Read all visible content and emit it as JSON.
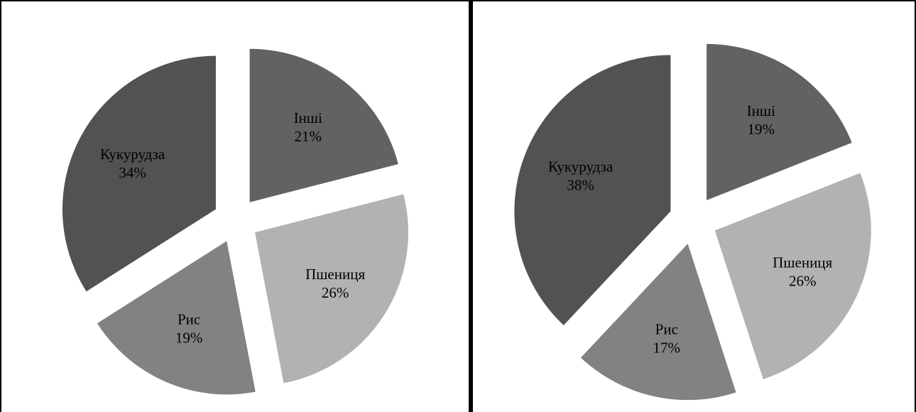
{
  "chart_data": [
    {
      "type": "pie",
      "title": "",
      "slices": [
        {
          "label": "Інші",
          "value": 21,
          "value_label": "21%",
          "color": "#626262"
        },
        {
          "label": "Пшениця",
          "value": 26,
          "value_label": "26%",
          "color": "#b2b2b2"
        },
        {
          "label": "Рис",
          "value": 19,
          "value_label": "19%",
          "color": "#828282"
        },
        {
          "label": "Кукурудза",
          "value": 34,
          "value_label": "34%",
          "color": "#525252"
        }
      ],
      "legend": "none",
      "exploded": true
    },
    {
      "type": "pie",
      "title": "",
      "slices": [
        {
          "label": "Інші",
          "value": 19,
          "value_label": "19%",
          "color": "#626262"
        },
        {
          "label": "Пшениця",
          "value": 26,
          "value_label": "26%",
          "color": "#b2b2b2"
        },
        {
          "label": "Рис",
          "value": 17,
          "value_label": "17%",
          "color": "#828282"
        },
        {
          "label": "Кукурудза",
          "value": 38,
          "value_label": "38%",
          "color": "#525252"
        }
      ],
      "legend": "none",
      "exploded": true
    }
  ]
}
